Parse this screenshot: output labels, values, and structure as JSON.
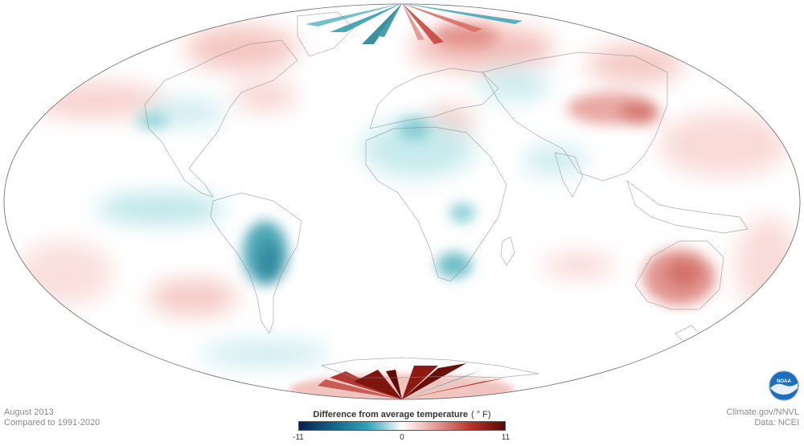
{
  "map": {
    "projection": "Mollweide (Atlantic-centered)",
    "subject": "Global surface temperature anomaly",
    "units": "°F",
    "notable_regions": [
      {
        "name": "South America (Bolivia/Paraguay/N. Argentina)",
        "anomaly": "cooler",
        "strength": "strong"
      },
      {
        "name": "Antarctica (Pacific/Atlantic sector)",
        "anomaly": "warmer",
        "strength": "very strong"
      },
      {
        "name": "Australia (central/east)",
        "anomaly": "warmer",
        "strength": "moderate"
      },
      {
        "name": "Central Asia / Mongolia",
        "anomaly": "warmer",
        "strength": "moderate"
      },
      {
        "name": "Sahara / North Africa",
        "anomaly": "cooler",
        "strength": "moderate"
      },
      {
        "name": "Southern Africa",
        "anomaly": "cooler",
        "strength": "moderate"
      },
      {
        "name": "Eastern Tropical Pacific",
        "anomaly": "cooler",
        "strength": "moderate"
      },
      {
        "name": "Northern Europe / Scandinavia",
        "anomaly": "warmer",
        "strength": "moderate"
      }
    ]
  },
  "footer": {
    "date_line": "August 2013",
    "baseline_line": "Compared to 1991-2020",
    "source_line": "Climate.gov/NNVL",
    "data_line": "Data: NCEI"
  },
  "legend": {
    "title": "Difference from average temperature",
    "unit": "( ° F)",
    "min_label": "-11",
    "mid_label": "0",
    "max_label": "11",
    "min": -11,
    "max": 11,
    "colors": [
      "#0b1f4f",
      "#13648a",
      "#2fa3b5",
      "#ffffff",
      "#e39a96",
      "#b8332c",
      "#5c0a05"
    ]
  },
  "logo": {
    "icon": "noaa-logo-icon",
    "text": "NOAA"
  }
}
